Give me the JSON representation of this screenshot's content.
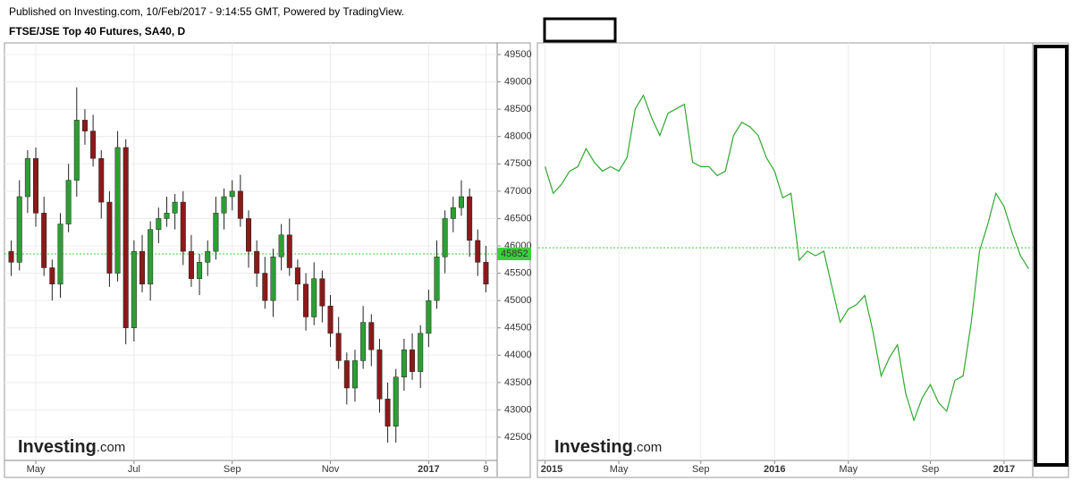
{
  "header": "Published on Investing.com, 10/Feb/2017 - 9:14:55 GMT, Powered by TradingView.",
  "chart_data": [
    {
      "type": "candlestick",
      "title": "FTSE/JSE Top 40 Futures, SA40, D",
      "watermark": [
        "Investing",
        ".com"
      ],
      "categories": [
        null,
        null,
        null,
        "May",
        null,
        null,
        null,
        null,
        null,
        null,
        null,
        null,
        null,
        null,
        null,
        "Jul",
        null,
        null,
        null,
        null,
        null,
        null,
        null,
        null,
        null,
        null,
        null,
        "Sep",
        null,
        null,
        null,
        null,
        null,
        null,
        null,
        null,
        null,
        null,
        null,
        "Nov",
        null,
        null,
        null,
        null,
        null,
        null,
        null,
        null,
        null,
        null,
        null,
        "2017",
        null,
        null,
        null,
        null,
        null,
        null,
        "9"
      ],
      "open": [
        45900,
        45700,
        46900,
        47600,
        46600,
        45600,
        45300,
        46400,
        47200,
        48300,
        48100,
        47600,
        46800,
        45500,
        47800,
        44500,
        45900,
        45300,
        46300,
        46500,
        46600,
        46800,
        45900,
        45400,
        45700,
        45900,
        46600,
        46900,
        47000,
        46500,
        45900,
        45500,
        45000,
        45800,
        46200,
        45600,
        45300,
        44700,
        45400,
        44900,
        44400,
        43900,
        43400,
        43900,
        44600,
        44100,
        43200,
        42700,
        43600,
        44100,
        43700,
        44400,
        45000,
        45800,
        46500,
        46700,
        46900,
        46100,
        45700
      ],
      "high": [
        46100,
        47200,
        47750,
        47800,
        46900,
        45750,
        46600,
        47500,
        48900,
        48500,
        48400,
        47750,
        47000,
        48100,
        47950,
        46100,
        46200,
        46450,
        46700,
        46900,
        46950,
        47000,
        46200,
        45850,
        46100,
        46900,
        47050,
        47200,
        47300,
        46650,
        46100,
        45800,
        45950,
        46400,
        46500,
        45750,
        45500,
        45700,
        45550,
        45100,
        44700,
        44050,
        44100,
        44900,
        44750,
        44300,
        43500,
        43750,
        44300,
        44400,
        44550,
        45200,
        46100,
        46650,
        46900,
        47200,
        47050,
        46300,
        46000
      ],
      "low": [
        45450,
        45550,
        46600,
        46350,
        45450,
        45000,
        45050,
        46250,
        46900,
        47850,
        47450,
        46500,
        45250,
        45350,
        44200,
        44250,
        45150,
        45000,
        46050,
        46350,
        46300,
        45650,
        45250,
        45100,
        45450,
        45750,
        46300,
        46650,
        46350,
        45600,
        45250,
        44850,
        44700,
        45550,
        45450,
        45000,
        44450,
        44550,
        44600,
        44150,
        43750,
        43100,
        43150,
        43750,
        43800,
        42950,
        42400,
        42400,
        43350,
        43550,
        43400,
        44150,
        44850,
        45500,
        46250,
        46550,
        45800,
        45450,
        45150
      ],
      "close": [
        45700,
        46900,
        47600,
        46600,
        45600,
        45300,
        46400,
        47200,
        48300,
        48100,
        47600,
        46800,
        45500,
        47800,
        44500,
        45900,
        45300,
        46300,
        46500,
        46600,
        46800,
        45900,
        45400,
        45700,
        45900,
        46600,
        46900,
        47000,
        46500,
        45900,
        45500,
        45000,
        45800,
        46200,
        45600,
        45300,
        44700,
        45400,
        44900,
        44400,
        43900,
        43400,
        43900,
        44600,
        44100,
        43200,
        42700,
        43600,
        44100,
        43700,
        44400,
        45000,
        45800,
        46500,
        46700,
        46900,
        46100,
        45700,
        45300
      ],
      "up_color": "#2e9e34",
      "down_color": "#8b1a1a",
      "ylim": [
        42075,
        49680
      ],
      "yticks": [
        42500,
        43000,
        43500,
        44000,
        44500,
        45000,
        45500,
        46000,
        46500,
        47000,
        47500,
        48000,
        48500,
        49000,
        49500
      ],
      "grid": true,
      "price_line": {
        "value": 45852,
        "color": "#3ccf3c"
      }
    },
    {
      "type": "line",
      "watermark": [
        "Investing",
        ".com"
      ],
      "categories": [
        "2015",
        null,
        null,
        null,
        null,
        null,
        null,
        null,
        null,
        "May",
        null,
        null,
        null,
        null,
        null,
        null,
        null,
        null,
        null,
        "Sep",
        null,
        null,
        null,
        null,
        null,
        null,
        null,
        null,
        "2016",
        null,
        null,
        null,
        null,
        null,
        null,
        null,
        null,
        "May",
        null,
        null,
        null,
        null,
        null,
        null,
        null,
        null,
        null,
        "Sep",
        null,
        null,
        null,
        null,
        null,
        null,
        null,
        null,
        "2017",
        null,
        null,
        null
      ],
      "series": [
        {
          "color": "#2ea82e",
          "values": [
            48480,
            47710,
            47970,
            48350,
            48480,
            49000,
            48610,
            48350,
            48480,
            48350,
            48740,
            50150,
            50540,
            49890,
            49380,
            50020,
            50150,
            50280,
            48610,
            48480,
            48480,
            48220,
            48350,
            49380,
            49760,
            49630,
            49380,
            48740,
            48350,
            47580,
            47710,
            45780,
            46040,
            45910,
            46040,
            45010,
            43990,
            44370,
            44500,
            44760,
            43730,
            42440,
            42960,
            43340,
            41930,
            41160,
            41800,
            42190,
            41670,
            41420,
            42310,
            42440,
            43990,
            46040,
            46810,
            47710,
            47330,
            46560,
            45910,
            45530
          ]
        }
      ],
      "ylim": [
        40000,
        52000
      ],
      "grid": true,
      "price_line": {
        "value": 46140,
        "color": "#3ccf3c"
      }
    }
  ]
}
